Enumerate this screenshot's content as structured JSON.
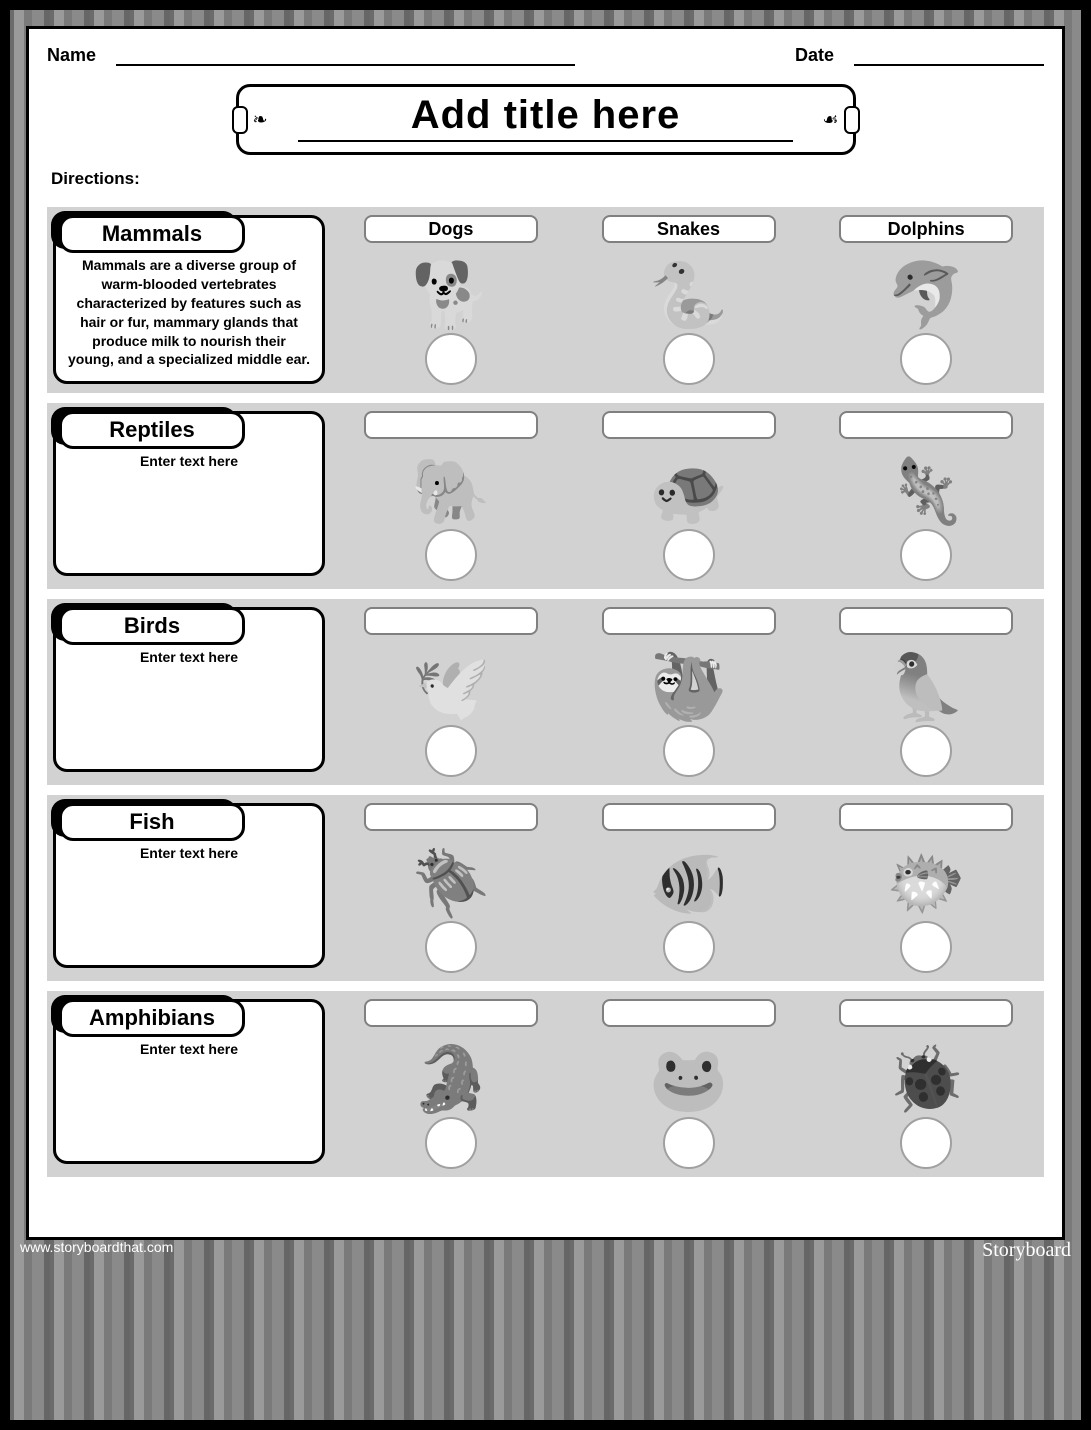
{
  "header": {
    "name_label": "Name",
    "date_label": "Date"
  },
  "title": {
    "text": "Add title here",
    "deco_left": "❧",
    "deco_right": "☙"
  },
  "directions_label": "Directions:",
  "rows": [
    {
      "category": "Mammals",
      "desc": "Mammals are a diverse group of warm-blooded vertebrates characterized by features such as hair or fur, mammary glands that produce milk to nourish their young, and a specialized middle ear.",
      "animals": [
        {
          "label": "Dogs",
          "glyph": "🐕"
        },
        {
          "label": "Snakes",
          "glyph": "🐍"
        },
        {
          "label": "Dolphins",
          "glyph": "🐬"
        }
      ]
    },
    {
      "category": "Reptiles",
      "desc": "Enter text here",
      "animals": [
        {
          "label": "",
          "glyph": "🐘"
        },
        {
          "label": "",
          "glyph": "🐢"
        },
        {
          "label": "",
          "glyph": "🦎"
        }
      ]
    },
    {
      "category": "Birds",
      "desc": "Enter text here",
      "animals": [
        {
          "label": "",
          "glyph": "🕊️"
        },
        {
          "label": "",
          "glyph": "🦥"
        },
        {
          "label": "",
          "glyph": "🦜"
        }
      ]
    },
    {
      "category": "Fish",
      "desc": "Enter text here",
      "animals": [
        {
          "label": "",
          "glyph": "🪲"
        },
        {
          "label": "",
          "glyph": "🐠"
        },
        {
          "label": "",
          "glyph": "🐡"
        }
      ]
    },
    {
      "category": "Amphibians",
      "desc": "Enter text here",
      "animals": [
        {
          "label": "",
          "glyph": "🐊"
        },
        {
          "label": "",
          "glyph": "🐸"
        },
        {
          "label": "",
          "glyph": "🐞"
        }
      ]
    }
  ],
  "footer": {
    "url": "www.storyboardthat.com",
    "brand": "Storyboard"
  },
  "colors": {
    "row_bg": "#d2d2d2",
    "border": "#000000",
    "page_bg": "#ffffff"
  }
}
